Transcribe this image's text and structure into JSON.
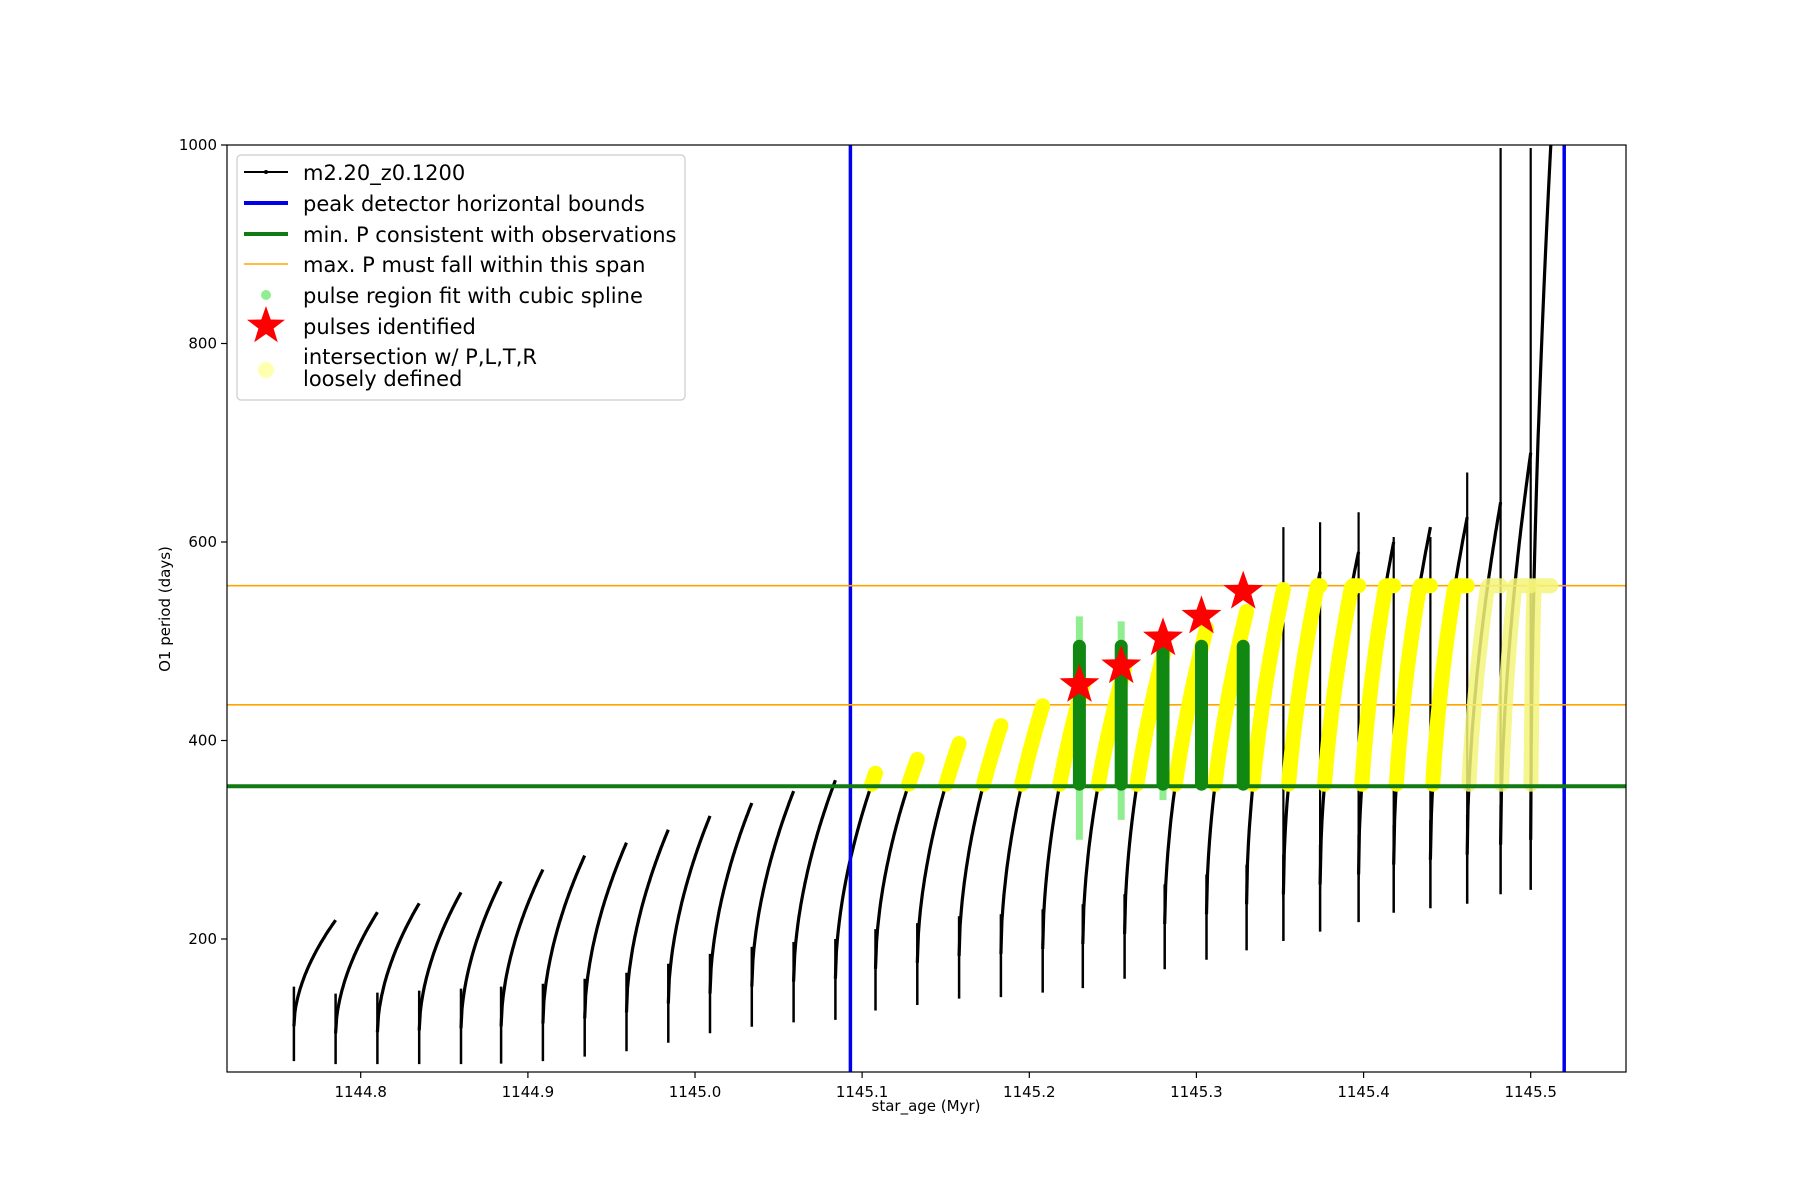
{
  "chart_data": {
    "type": "line",
    "title": "",
    "xlabel": "star_age (Myr)",
    "ylabel": "O1 period (days)",
    "xlim": [
      1144.72,
      1145.557
    ],
    "ylim": [
      66,
      1000
    ],
    "x_ticks": [
      1144.8,
      1144.9,
      1145.0,
      1145.1,
      1145.2,
      1145.3,
      1145.4,
      1145.5
    ],
    "x_tick_labels": [
      "1144.8",
      "1144.9",
      "1145.0",
      "1145.1",
      "1145.2",
      "1145.3",
      "1145.4",
      "1145.5"
    ],
    "y_ticks": [
      200,
      400,
      600,
      800,
      1000
    ],
    "y_tick_labels": [
      "200",
      "400",
      "600",
      "800",
      "1000"
    ],
    "grid": false,
    "legend_placement": "upper-left",
    "colors": {
      "model": "#000000",
      "bounds": "#0000ee",
      "min_p": "#127a12",
      "max_p_span": "#ffa500",
      "spline": "#90ee90",
      "pulse_star": "#ff0000",
      "intersection": "#ffff00",
      "spline_dark": "#118811"
    },
    "cycles": [
      {
        "x0": 1144.76,
        "x1": 1144.785,
        "lo": 112,
        "hi": 219
      },
      {
        "x0": 1144.785,
        "x1": 1144.81,
        "lo": 105,
        "hi": 227
      },
      {
        "x0": 1144.81,
        "x1": 1144.835,
        "lo": 106,
        "hi": 236
      },
      {
        "x0": 1144.835,
        "x1": 1144.86,
        "lo": 108,
        "hi": 247
      },
      {
        "x0": 1144.86,
        "x1": 1144.884,
        "lo": 110,
        "hi": 258
      },
      {
        "x0": 1144.884,
        "x1": 1144.909,
        "lo": 112,
        "hi": 270
      },
      {
        "x0": 1144.909,
        "x1": 1144.934,
        "lo": 115,
        "hi": 284
      },
      {
        "x0": 1144.934,
        "x1": 1144.959,
        "lo": 120,
        "hi": 297
      },
      {
        "x0": 1144.959,
        "x1": 1144.984,
        "lo": 126,
        "hi": 310
      },
      {
        "x0": 1144.984,
        "x1": 1145.009,
        "lo": 135,
        "hi": 324
      },
      {
        "x0": 1145.009,
        "x1": 1145.034,
        "lo": 145,
        "hi": 337
      },
      {
        "x0": 1145.034,
        "x1": 1145.059,
        "lo": 152,
        "hi": 349
      },
      {
        "x0": 1145.059,
        "x1": 1145.084,
        "lo": 157,
        "hi": 360
      },
      {
        "x0": 1145.084,
        "x1": 1145.108,
        "lo": 160,
        "hi": 367
      },
      {
        "x0": 1145.108,
        "x1": 1145.133,
        "lo": 170,
        "hi": 381
      },
      {
        "x0": 1145.133,
        "x1": 1145.158,
        "lo": 176,
        "hi": 397
      },
      {
        "x0": 1145.158,
        "x1": 1145.183,
        "lo": 183,
        "hi": 415
      },
      {
        "x0": 1145.183,
        "x1": 1145.208,
        "lo": 185,
        "hi": 435
      },
      {
        "x0": 1145.208,
        "x1": 1145.232,
        "lo": 190,
        "hi": 455
      },
      {
        "x0": 1145.232,
        "x1": 1145.257,
        "lo": 195,
        "hi": 472
      },
      {
        "x0": 1145.257,
        "x1": 1145.281,
        "lo": 205,
        "hi": 492
      },
      {
        "x0": 1145.281,
        "x1": 1145.306,
        "lo": 215,
        "hi": 513
      },
      {
        "x0": 1145.306,
        "x1": 1145.33,
        "lo": 225,
        "hi": 530
      },
      {
        "x0": 1145.33,
        "x1": 1145.352,
        "lo": 235,
        "hi": 552
      },
      {
        "x0": 1145.352,
        "x1": 1145.374,
        "lo": 245,
        "hi": 570
      },
      {
        "x0": 1145.374,
        "x1": 1145.397,
        "lo": 255,
        "hi": 590
      },
      {
        "x0": 1145.397,
        "x1": 1145.418,
        "lo": 265,
        "hi": 600
      },
      {
        "x0": 1145.418,
        "x1": 1145.44,
        "lo": 275,
        "hi": 615
      },
      {
        "x0": 1145.44,
        "x1": 1145.462,
        "lo": 280,
        "hi": 625
      },
      {
        "x0": 1145.462,
        "x1": 1145.482,
        "lo": 285,
        "hi": 640
      },
      {
        "x0": 1145.482,
        "x1": 1145.5,
        "lo": 295,
        "hi": 690
      },
      {
        "x0": 1145.5,
        "x1": 1145.512,
        "lo": 300,
        "hi": 1000
      }
    ],
    "spikes": [
      {
        "x": 1145.352,
        "lo": 240,
        "hi": 615
      },
      {
        "x": 1145.374,
        "lo": 250,
        "hi": 620
      },
      {
        "x": 1145.397,
        "lo": 260,
        "hi": 630
      },
      {
        "x": 1145.418,
        "lo": 270,
        "hi": 605
      },
      {
        "x": 1145.44,
        "lo": 275,
        "hi": 605
      },
      {
        "x": 1145.462,
        "lo": 280,
        "hi": 670
      },
      {
        "x": 1145.482,
        "lo": 295,
        "hi": 997
      },
      {
        "x": 1145.5,
        "lo": 320,
        "hi": 997
      }
    ],
    "peak_detector_horizontal_bounds": [
      1145.093,
      1145.52
    ],
    "min_p_consistent": 354,
    "max_p_span": [
      436,
      556
    ],
    "spline_fits": [
      {
        "x": 1145.23,
        "lo": 300,
        "hi": 525
      },
      {
        "x": 1145.255,
        "lo": 320,
        "hi": 520
      },
      {
        "x": 1145.28,
        "lo": 340,
        "hi": 505
      },
      {
        "x": 1145.303,
        "lo": 350,
        "hi": 500
      },
      {
        "x": 1145.328,
        "lo": 352,
        "hi": 498
      }
    ],
    "pulses_identified": [
      {
        "x": 1145.23,
        "y": 456
      },
      {
        "x": 1145.255,
        "y": 475
      },
      {
        "x": 1145.28,
        "y": 503
      },
      {
        "x": 1145.303,
        "y": 525
      },
      {
        "x": 1145.328,
        "y": 550
      }
    ],
    "intersection_points_floor": 356
  },
  "legend": {
    "items": [
      "m2.20_z0.1200",
      "peak detector horizontal bounds",
      "min. P consistent with observations",
      "max. P must fall within this span",
      "pulse region fit with cubic spline",
      "pulses identified",
      "intersection w/ P,L,T,R",
      "loosely defined"
    ]
  }
}
